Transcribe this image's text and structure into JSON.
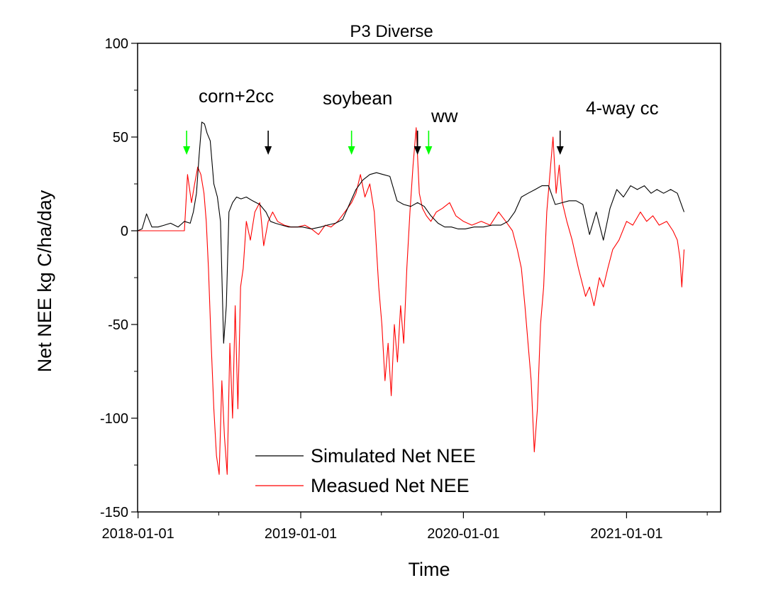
{
  "chart_data": {
    "type": "line",
    "title": "P3 Diverse",
    "xlabel": "Time",
    "ylabel": "Net NEE kg C/ha/day",
    "xlim": [
      "2017-12-31",
      "2021-07-31"
    ],
    "ylim": [
      -150,
      100
    ],
    "x_ticks": [
      "2018-01-01",
      "2019-01-01",
      "2020-01-01",
      "2021-01-01"
    ],
    "y_ticks": [
      100,
      50,
      0,
      -50,
      -100,
      -150
    ],
    "grid": false,
    "legend_position": "bottom-center",
    "series": [
      {
        "name": "Simulated Net NEE",
        "color": "#000000",
        "x": [
          "2017-12-31",
          "2018-01-10",
          "2018-01-20",
          "2018-02-01",
          "2018-02-15",
          "2018-03-01",
          "2018-03-15",
          "2018-04-01",
          "2018-04-15",
          "2018-04-28",
          "2018-05-05",
          "2018-05-12",
          "2018-05-18",
          "2018-05-24",
          "2018-05-30",
          "2018-06-05",
          "2018-06-12",
          "2018-06-20",
          "2018-06-28",
          "2018-07-05",
          "2018-07-12",
          "2018-07-18",
          "2018-07-24",
          "2018-08-01",
          "2018-08-10",
          "2018-08-20",
          "2018-09-01",
          "2018-09-15",
          "2018-10-01",
          "2018-10-15",
          "2018-10-25",
          "2018-11-05",
          "2018-11-20",
          "2018-12-05",
          "2018-12-20",
          "2019-01-05",
          "2019-01-25",
          "2019-02-15",
          "2019-03-01",
          "2019-03-20",
          "2019-04-05",
          "2019-04-20",
          "2019-05-05",
          "2019-05-20",
          "2019-06-05",
          "2019-06-20",
          "2019-07-05",
          "2019-07-20",
          "2019-08-05",
          "2019-08-20",
          "2019-09-05",
          "2019-09-20",
          "2019-10-05",
          "2019-10-20",
          "2019-11-05",
          "2019-11-20",
          "2019-12-05",
          "2019-12-20",
          "2020-01-05",
          "2020-01-25",
          "2020-02-15",
          "2020-03-05",
          "2020-03-25",
          "2020-04-10",
          "2020-04-25",
          "2020-05-10",
          "2020-05-25",
          "2020-06-10",
          "2020-06-25",
          "2020-07-10",
          "2020-07-25",
          "2020-08-10",
          "2020-08-25",
          "2020-09-10",
          "2020-09-25",
          "2020-10-10",
          "2020-10-25",
          "2020-11-10",
          "2020-11-25",
          "2020-12-10",
          "2020-12-25",
          "2021-01-10",
          "2021-01-25",
          "2021-02-10",
          "2021-02-25",
          "2021-03-10",
          "2021-03-25",
          "2021-04-10",
          "2021-04-25",
          "2021-05-10"
        ],
        "values": [
          0,
          1,
          9,
          2,
          2,
          3,
          4,
          2,
          5,
          4,
          10,
          20,
          40,
          58,
          57,
          52,
          48,
          25,
          18,
          5,
          -60,
          -40,
          10,
          15,
          18,
          17,
          18,
          16,
          14,
          10,
          5,
          4,
          3,
          2,
          2,
          2,
          1,
          2,
          3,
          4,
          6,
          14,
          22,
          27,
          30,
          31,
          30,
          29,
          16,
          14,
          13,
          15,
          13,
          8,
          4,
          2,
          2,
          1,
          1,
          2,
          2,
          3,
          3,
          5,
          10,
          18,
          20,
          22,
          24,
          24,
          14,
          15,
          16,
          16,
          14,
          -2,
          10,
          -5,
          12,
          22,
          18,
          24,
          22,
          24,
          20,
          22,
          20,
          22,
          20,
          10
        ]
      },
      {
        "name": "Measued Net NEE",
        "color": "#ff0000",
        "x": [
          "2017-12-31",
          "2018-01-20",
          "2018-02-15",
          "2018-03-10",
          "2018-04-01",
          "2018-04-15",
          "2018-04-22",
          "2018-05-01",
          "2018-05-08",
          "2018-05-15",
          "2018-05-22",
          "2018-05-29",
          "2018-06-03",
          "2018-06-08",
          "2018-06-14",
          "2018-06-20",
          "2018-06-26",
          "2018-07-02",
          "2018-07-08",
          "2018-07-14",
          "2018-07-20",
          "2018-07-26",
          "2018-08-01",
          "2018-08-07",
          "2018-08-13",
          "2018-08-19",
          "2018-08-25",
          "2018-09-01",
          "2018-09-10",
          "2018-09-20",
          "2018-10-01",
          "2018-10-10",
          "2018-10-20",
          "2018-10-30",
          "2018-11-10",
          "2018-11-25",
          "2018-12-10",
          "2018-12-25",
          "2019-01-10",
          "2019-01-25",
          "2019-02-10",
          "2019-02-25",
          "2019-03-10",
          "2019-03-25",
          "2019-04-10",
          "2019-04-25",
          "2019-05-05",
          "2019-05-15",
          "2019-05-25",
          "2019-06-05",
          "2019-06-15",
          "2019-06-25",
          "2019-07-02",
          "2019-07-09",
          "2019-07-16",
          "2019-07-23",
          "2019-07-30",
          "2019-08-06",
          "2019-08-13",
          "2019-08-20",
          "2019-08-27",
          "2019-09-03",
          "2019-09-10",
          "2019-09-17",
          "2019-09-24",
          "2019-10-01",
          "2019-10-10",
          "2019-10-20",
          "2019-11-01",
          "2019-11-15",
          "2019-12-01",
          "2019-12-15",
          "2020-01-01",
          "2020-01-20",
          "2020-02-10",
          "2020-03-01",
          "2020-03-20",
          "2020-04-05",
          "2020-04-20",
          "2020-05-01",
          "2020-05-10",
          "2020-05-18",
          "2020-05-25",
          "2020-06-01",
          "2020-06-08",
          "2020-06-15",
          "2020-06-22",
          "2020-06-29",
          "2020-07-06",
          "2020-07-13",
          "2020-07-20",
          "2020-07-27",
          "2020-08-03",
          "2020-08-10",
          "2020-08-20",
          "2020-09-01",
          "2020-09-15",
          "2020-10-01",
          "2020-10-10",
          "2020-10-20",
          "2020-11-01",
          "2020-11-10",
          "2020-11-20",
          "2020-12-01",
          "2020-12-15",
          "2021-01-01",
          "2021-01-15",
          "2021-02-01",
          "2021-02-15",
          "2021-03-01",
          "2021-03-15",
          "2021-04-01",
          "2021-04-15",
          "2021-04-25",
          "2021-05-01",
          "2021-05-05",
          "2021-05-10"
        ],
        "values": [
          0,
          0,
          0,
          0,
          0,
          0,
          30,
          15,
          25,
          34,
          30,
          20,
          5,
          -20,
          -60,
          -95,
          -120,
          -130,
          -80,
          -110,
          -130,
          -60,
          -100,
          -40,
          -95,
          -30,
          -20,
          5,
          -5,
          10,
          15,
          -8,
          5,
          10,
          5,
          3,
          2,
          2,
          3,
          1,
          -2,
          3,
          2,
          5,
          10,
          15,
          20,
          30,
          18,
          25,
          10,
          -30,
          -50,
          -80,
          -60,
          -88,
          -50,
          -70,
          -40,
          -60,
          -20,
          10,
          35,
          55,
          20,
          12,
          8,
          5,
          10,
          12,
          15,
          8,
          5,
          3,
          5,
          3,
          10,
          5,
          0,
          -10,
          -20,
          -40,
          -60,
          -80,
          -118,
          -95,
          -50,
          -30,
          10,
          30,
          50,
          20,
          35,
          15,
          5,
          -5,
          -20,
          -35,
          -30,
          -40,
          -25,
          -30,
          -20,
          -10,
          -5,
          5,
          3,
          10,
          5,
          8,
          3,
          5,
          0,
          -5,
          -15,
          -30,
          -10
        ]
      }
    ],
    "annotations": {
      "labels": [
        {
          "text": "corn+2cc"
        },
        {
          "text": "soybean"
        },
        {
          "text": "ww"
        },
        {
          "text": "4-way cc"
        }
      ],
      "arrows": [
        {
          "date": "2018-04-20",
          "color": "#00ff00"
        },
        {
          "date": "2018-10-20",
          "color": "#000000"
        },
        {
          "date": "2019-04-25",
          "color": "#00ff00"
        },
        {
          "date": "2019-09-20",
          "color": "#000000"
        },
        {
          "date": "2019-10-15",
          "color": "#00ff00"
        },
        {
          "date": "2020-08-05",
          "color": "#000000"
        }
      ]
    }
  }
}
